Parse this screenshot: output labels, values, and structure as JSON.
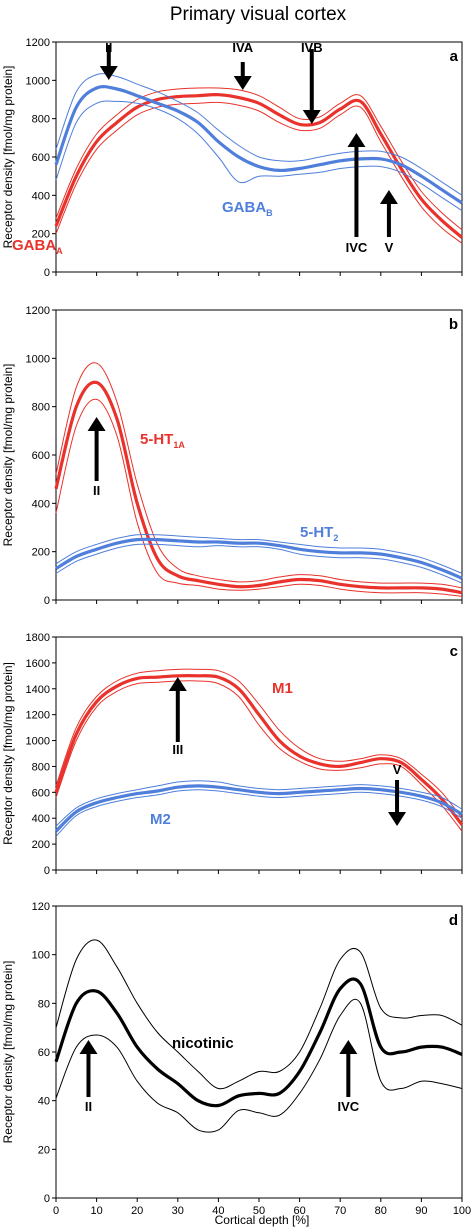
{
  "figure": {
    "title": "Primary visual cortex",
    "x_axis_label": "Cortical depth [%]"
  },
  "chart_data": [
    {
      "type": "line",
      "panel_label": "a",
      "ylabel": "Receptor density [fmol/mg protein]",
      "ylim": [
        0,
        1200
      ],
      "yticks": [
        0,
        200,
        400,
        600,
        800,
        1000,
        1200
      ],
      "xlim": [
        0,
        100
      ],
      "grid": false,
      "series": [
        {
          "name": "GABA",
          "subscript": "A",
          "color": "#e8322b",
          "x": [
            0,
            5,
            10,
            15,
            20,
            25,
            30,
            35,
            40,
            45,
            50,
            55,
            60,
            65,
            70,
            75,
            80,
            85,
            90,
            95,
            100
          ],
          "mean": [
            240,
            500,
            680,
            780,
            860,
            900,
            915,
            920,
            925,
            910,
            880,
            820,
            770,
            780,
            850,
            890,
            720,
            540,
            380,
            270,
            180
          ],
          "upper": [
            280,
            540,
            720,
            820,
            900,
            940,
            955,
            960,
            960,
            950,
            920,
            860,
            800,
            810,
            880,
            920,
            760,
            580,
            420,
            310,
            220
          ],
          "lower": [
            200,
            460,
            640,
            740,
            820,
            860,
            875,
            880,
            885,
            870,
            840,
            780,
            740,
            750,
            820,
            860,
            680,
            500,
            340,
            230,
            150
          ]
        },
        {
          "name": "GABA",
          "subscript": "B",
          "color": "#4f7fdb",
          "x": [
            0,
            5,
            10,
            15,
            20,
            25,
            30,
            35,
            40,
            45,
            50,
            55,
            60,
            65,
            70,
            75,
            80,
            85,
            90,
            95,
            100
          ],
          "mean": [
            560,
            860,
            960,
            955,
            920,
            880,
            840,
            780,
            680,
            600,
            550,
            530,
            540,
            560,
            580,
            590,
            590,
            560,
            500,
            430,
            360
          ],
          "upper": [
            640,
            940,
            1030,
            1020,
            980,
            940,
            890,
            830,
            740,
            660,
            600,
            580,
            580,
            600,
            620,
            630,
            630,
            600,
            540,
            470,
            400
          ],
          "lower": [
            480,
            780,
            880,
            890,
            880,
            850,
            800,
            720,
            600,
            470,
            500,
            500,
            510,
            520,
            540,
            550,
            550,
            520,
            460,
            390,
            320
          ]
        }
      ],
      "annotations": [
        {
          "text": "II",
          "x": 13,
          "direction": "down"
        },
        {
          "text": "IVA",
          "x": 46,
          "direction": "down"
        },
        {
          "text": "IVB",
          "x": 63,
          "direction": "down"
        },
        {
          "text": "IVC",
          "x": 74,
          "direction": "up"
        },
        {
          "text": "V",
          "x": 82,
          "direction": "up"
        }
      ]
    },
    {
      "type": "line",
      "panel_label": "b",
      "ylabel": "Receptor density [fmol/mg protein]",
      "ylim": [
        0,
        1200
      ],
      "yticks": [
        0,
        200,
        400,
        600,
        800,
        1000,
        1200
      ],
      "xlim": [
        0,
        100
      ],
      "grid": false,
      "series": [
        {
          "name": "5-HT",
          "subscript": "1A",
          "color": "#e8322b",
          "x": [
            0,
            5,
            10,
            15,
            20,
            25,
            30,
            35,
            40,
            45,
            50,
            55,
            60,
            65,
            70,
            75,
            80,
            85,
            90,
            95,
            100
          ],
          "mean": [
            460,
            800,
            900,
            750,
            400,
            170,
            100,
            80,
            65,
            55,
            60,
            75,
            85,
            80,
            65,
            55,
            50,
            50,
            50,
            45,
            30
          ],
          "upper": [
            520,
            880,
            980,
            820,
            480,
            230,
            130,
            100,
            85,
            75,
            80,
            95,
            105,
            100,
            85,
            75,
            70,
            70,
            70,
            65,
            50
          ],
          "lower": [
            360,
            720,
            830,
            680,
            320,
            110,
            70,
            60,
            45,
            40,
            45,
            55,
            65,
            60,
            45,
            35,
            30,
            30,
            30,
            25,
            15
          ]
        },
        {
          "name": "5-HT",
          "subscript": "2",
          "color": "#4f7fdb",
          "x": [
            0,
            5,
            10,
            15,
            20,
            25,
            30,
            35,
            40,
            45,
            50,
            55,
            60,
            65,
            70,
            75,
            80,
            85,
            90,
            95,
            100
          ],
          "mean": [
            130,
            180,
            210,
            235,
            250,
            250,
            245,
            240,
            240,
            235,
            235,
            225,
            210,
            200,
            195,
            195,
            190,
            175,
            155,
            125,
            90
          ],
          "upper": [
            150,
            200,
            230,
            255,
            270,
            270,
            265,
            260,
            255,
            250,
            250,
            240,
            230,
            220,
            215,
            215,
            210,
            195,
            175,
            145,
            110
          ],
          "lower": [
            110,
            160,
            190,
            215,
            230,
            230,
            225,
            220,
            225,
            220,
            220,
            210,
            190,
            180,
            175,
            175,
            170,
            155,
            135,
            105,
            70
          ]
        }
      ],
      "annotations": [
        {
          "text": "II",
          "x": 10,
          "direction": "up"
        }
      ]
    },
    {
      "type": "line",
      "panel_label": "c",
      "ylabel": "Receptor density [fmol/mg protein]",
      "ylim": [
        0,
        1800
      ],
      "yticks": [
        0,
        200,
        400,
        600,
        800,
        1000,
        1200,
        1400,
        1600,
        1800
      ],
      "xlim": [
        0,
        100
      ],
      "grid": false,
      "series": [
        {
          "name": "M1",
          "subscript": "",
          "color": "#e8322b",
          "x": [
            0,
            5,
            10,
            15,
            20,
            25,
            30,
            35,
            40,
            45,
            50,
            55,
            60,
            65,
            70,
            75,
            80,
            85,
            90,
            95,
            100
          ],
          "mean": [
            600,
            1050,
            1300,
            1420,
            1480,
            1490,
            1500,
            1500,
            1490,
            1400,
            1200,
            1000,
            880,
            820,
            800,
            830,
            860,
            830,
            700,
            550,
            350
          ],
          "upper": [
            650,
            1100,
            1340,
            1460,
            1520,
            1540,
            1550,
            1550,
            1540,
            1460,
            1280,
            1080,
            940,
            860,
            840,
            860,
            890,
            860,
            740,
            600,
            400
          ],
          "lower": [
            560,
            1000,
            1260,
            1380,
            1440,
            1450,
            1460,
            1460,
            1440,
            1340,
            1120,
            940,
            840,
            780,
            770,
            790,
            820,
            800,
            660,
            500,
            300
          ]
        },
        {
          "name": "M2",
          "subscript": "",
          "color": "#4f7fdb",
          "x": [
            0,
            5,
            10,
            15,
            20,
            25,
            30,
            35,
            40,
            45,
            50,
            55,
            60,
            65,
            70,
            75,
            80,
            85,
            90,
            95,
            100
          ],
          "mean": [
            300,
            450,
            520,
            560,
            590,
            610,
            640,
            650,
            640,
            620,
            600,
            590,
            600,
            610,
            620,
            630,
            620,
            600,
            570,
            520,
            430
          ],
          "upper": [
            340,
            480,
            550,
            590,
            620,
            650,
            680,
            690,
            680,
            650,
            630,
            620,
            630,
            640,
            650,
            660,
            650,
            630,
            600,
            560,
            470
          ],
          "lower": [
            260,
            420,
            490,
            530,
            560,
            580,
            610,
            620,
            610,
            590,
            570,
            560,
            570,
            580,
            590,
            600,
            590,
            570,
            540,
            490,
            400
          ]
        }
      ],
      "annotations": [
        {
          "text": "III",
          "x": 30,
          "direction": "up"
        },
        {
          "text": "V",
          "x": 84,
          "direction": "down"
        }
      ]
    },
    {
      "type": "line",
      "panel_label": "d",
      "ylabel": "Receptor density [fmol/mg protein]",
      "ylim": [
        0,
        120
      ],
      "yticks": [
        0,
        20,
        40,
        60,
        80,
        100,
        120
      ],
      "xlim": [
        0,
        100
      ],
      "xticks": [
        0,
        10,
        20,
        30,
        40,
        50,
        60,
        70,
        80,
        90,
        100
      ],
      "grid": false,
      "series": [
        {
          "name": "nicotinic",
          "subscript": "",
          "color": "#000000",
          "x": [
            0,
            5,
            10,
            15,
            20,
            25,
            30,
            35,
            40,
            45,
            50,
            55,
            60,
            65,
            70,
            75,
            80,
            85,
            90,
            95,
            100
          ],
          "mean": [
            56,
            80,
            85,
            76,
            62,
            53,
            47,
            40,
            38,
            42,
            43,
            43,
            52,
            68,
            86,
            88,
            62,
            60,
            62,
            62,
            59
          ],
          "upper": [
            70,
            98,
            106,
            95,
            80,
            68,
            60,
            52,
            45,
            48,
            52,
            52,
            60,
            78,
            98,
            101,
            78,
            74,
            75,
            75,
            71
          ],
          "lower": [
            41,
            62,
            67,
            62,
            48,
            39,
            35,
            28,
            28,
            36,
            35,
            34,
            43,
            57,
            75,
            80,
            48,
            45,
            48,
            47,
            45
          ]
        }
      ],
      "annotations": [
        {
          "text": "II",
          "x": 8,
          "direction": "up"
        },
        {
          "text": "IVC",
          "x": 72,
          "direction": "up"
        }
      ]
    }
  ]
}
